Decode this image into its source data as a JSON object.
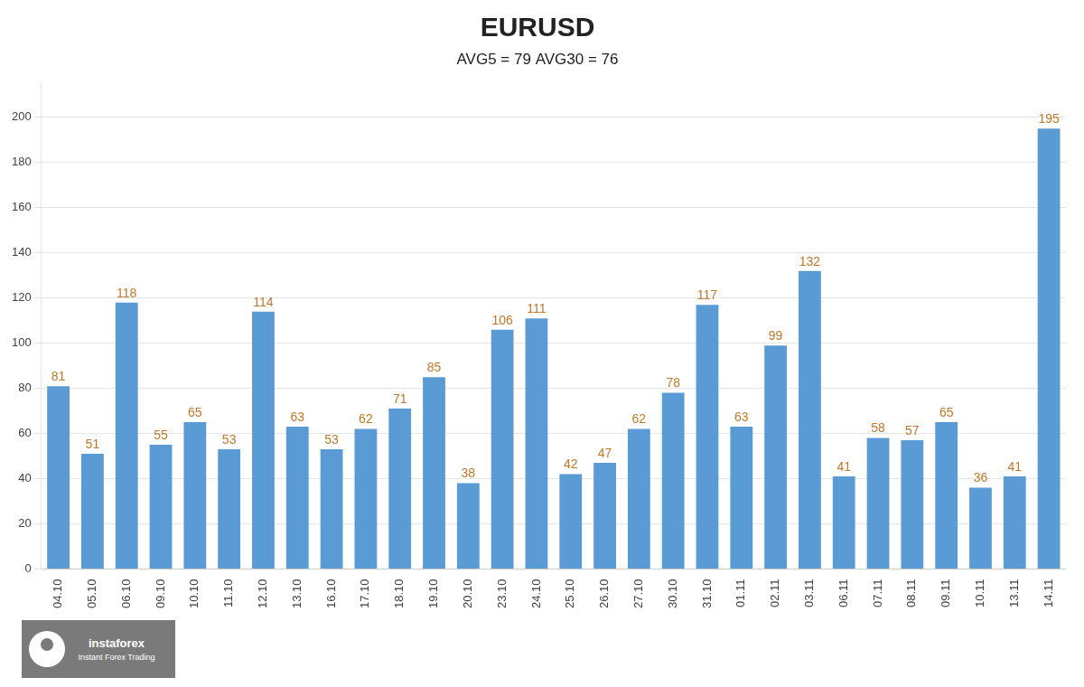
{
  "chart_data": {
    "type": "bar",
    "title": "EURUSD",
    "subtitle": "AVG5 = 79 AVG30 = 76",
    "categories": [
      "04.10",
      "05.10",
      "06.10",
      "09.10",
      "10.10",
      "11.10",
      "12.10",
      "13.10",
      "16.10",
      "17.10",
      "18.10",
      "19.10",
      "20.10",
      "23.10",
      "24.10",
      "25.10",
      "26.10",
      "27.10",
      "30.10",
      "31.10",
      "01.11",
      "02.11",
      "03.11",
      "06.11",
      "07.11",
      "08.11",
      "09.11",
      "10.11",
      "13.11",
      "14.11"
    ],
    "values": [
      81,
      51,
      118,
      55,
      65,
      53,
      114,
      63,
      53,
      62,
      71,
      85,
      38,
      106,
      111,
      42,
      47,
      62,
      78,
      117,
      63,
      99,
      132,
      41,
      58,
      57,
      65,
      36,
      41,
      195
    ],
    "color": "#5b9bd5",
    "ylim": [
      0,
      215
    ],
    "yticks": [
      0,
      20,
      40,
      60,
      80,
      100,
      120,
      140,
      160,
      180,
      200
    ],
    "grid": true,
    "data_labels": true,
    "annotations": [
      "instaforex",
      "Instant Forex Trading"
    ]
  }
}
